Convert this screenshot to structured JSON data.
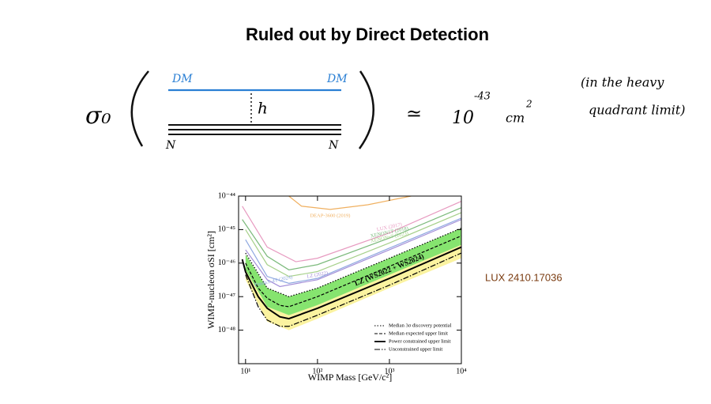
{
  "title": "Ruled out by Direct Detection",
  "handwriting": {
    "sigma": "σ₀",
    "dm_left": "DM",
    "dm_right": "DM",
    "mediator": "h",
    "n_left": "N",
    "n_right": "N",
    "approx": "≃",
    "base": "10",
    "exponent": "-43",
    "unit": "cm",
    "unit_power": "2",
    "note_line1": "(in the heavy",
    "note_line2": "quadrant limit)"
  },
  "source": "LUX 2410.17036",
  "chart_data": {
    "type": "line",
    "log_x": true,
    "log_y": true,
    "xlabel": "WIMP Mass [GeV/c²]",
    "ylabel": "WIMP-nucleon σSI [cm²]",
    "xlim": [
      8,
      10000
    ],
    "ylim": [
      1e-49,
      1e-44
    ],
    "xticks": [
      {
        "value": 10,
        "label": "10¹"
      },
      {
        "value": 100,
        "label": "10²"
      },
      {
        "value": 1000,
        "label": "10³"
      },
      {
        "value": 10000,
        "label": "10⁴"
      }
    ],
    "yticks": [
      {
        "value": 1e-44,
        "label": "10⁻⁴⁴"
      },
      {
        "value": 1e-45,
        "label": "10⁻⁴⁵"
      },
      {
        "value": 1e-46,
        "label": "10⁻⁴⁶"
      },
      {
        "value": 1e-47,
        "label": "10⁻⁴⁷"
      },
      {
        "value": 1e-48,
        "label": "10⁻⁴⁸"
      }
    ],
    "bands": [
      {
        "color": "#fbf3a0",
        "x": [
          10,
          20,
          40,
          100,
          1000,
          10000
        ],
        "upper": [
          6.3e-47,
          5e-48,
          2.8e-48,
          5.6e-48,
          4.5e-47,
          3.5e-46
        ],
        "lower": [
          3.2e-47,
          1.8e-48,
          1e-48,
          2.2e-48,
          1.8e-47,
          1.4e-46
        ]
      },
      {
        "color": "#86e46f",
        "x": [
          10,
          20,
          40,
          100,
          1000,
          10000
        ],
        "upper": [
          1.8e-46,
          1.8e-47,
          1e-47,
          1.8e-47,
          1.4e-46,
          1.1e-45
        ],
        "lower": [
          6.3e-47,
          5e-48,
          2.8e-48,
          5.6e-48,
          4.5e-47,
          3.5e-46
        ]
      }
    ],
    "other_limits": [
      {
        "name": "DEAP-3600 (2019)",
        "color": "#f0b060",
        "x": [
          40,
          60,
          150,
          500,
          2000
        ],
        "values": [
          1e-44,
          5e-45,
          4e-45,
          5.5e-45,
          1e-44
        ]
      },
      {
        "name": "LUX (2017)",
        "color": "#e79ac0",
        "x": [
          9,
          20,
          50,
          100,
          1000,
          10000
        ],
        "values": [
          5e-45,
          3e-46,
          1.1e-46,
          1.4e-46,
          8e-46,
          7e-45
        ]
      },
      {
        "name": "XENON1T (2018)",
        "color": "#7cba7c",
        "x": [
          9,
          20,
          40,
          100,
          1000,
          10000
        ],
        "values": [
          2e-45,
          1.6e-46,
          6.3e-47,
          9e-47,
          5.6e-46,
          4.5e-45
        ]
      },
      {
        "name": "XENONnT (2023)",
        "color": "#a6d08a",
        "x": [
          10,
          20,
          40,
          100,
          1000,
          10000
        ],
        "values": [
          1e-45,
          9e-47,
          4e-47,
          5.6e-47,
          4e-46,
          3.2e-45
        ]
      },
      {
        "name": "LZ (2022)",
        "color": "#a48fd8",
        "x": [
          10,
          20,
          30,
          100,
          1000,
          10000
        ],
        "values": [
          2.5e-46,
          3.2e-47,
          2e-47,
          3.2e-47,
          2.5e-46,
          2e-45
        ]
      },
      {
        "name": "PandaX-4T (2024)",
        "color": "#8fa8e0",
        "x": [
          10,
          20,
          40,
          100,
          1000,
          10000
        ],
        "values": [
          5e-46,
          4e-47,
          2.5e-47,
          3.5e-47,
          2.8e-46,
          2.2e-45
        ]
      }
    ],
    "series": [
      {
        "name": "Median 3σ discovery potential",
        "color": "#000000",
        "dash": "dotted",
        "x": [
          10,
          20,
          40,
          100,
          1000,
          10000
        ],
        "values": [
          2e-46,
          1.8e-47,
          1e-47,
          1.8e-47,
          1.4e-46,
          1.1e-45
        ]
      },
      {
        "name": "Median expected upper limit",
        "color": "#000000",
        "dash": "dashed",
        "x": [
          10,
          15,
          20,
          30,
          40,
          100,
          1000,
          10000
        ],
        "values": [
          1e-46,
          1.8e-47,
          9e-48,
          5.5e-48,
          5e-48,
          1e-47,
          8e-47,
          6.5e-46
        ]
      },
      {
        "name": "Power constrained upper limit",
        "color": "#000000",
        "dash": "solid",
        "x": [
          9,
          10,
          15,
          20,
          30,
          40,
          100,
          1000,
          10000
        ],
        "values": [
          1.3e-46,
          5.5e-47,
          1e-47,
          4.5e-48,
          2.5e-48,
          2.2e-48,
          4.5e-48,
          3.5e-47,
          3e-46
        ]
      },
      {
        "name": "Unconstrained upper limit",
        "color": "#000000",
        "dash": "dashdot",
        "x": [
          10,
          15,
          20,
          30,
          40,
          100,
          1000,
          10000
        ],
        "values": [
          4.5e-47,
          5e-48,
          2e-48,
          1.3e-48,
          1.3e-48,
          2.8e-48,
          2.2e-47,
          2e-46
        ]
      }
    ],
    "annotation": "LZ (WS2022 + WS2024)",
    "legend": "lower right"
  }
}
